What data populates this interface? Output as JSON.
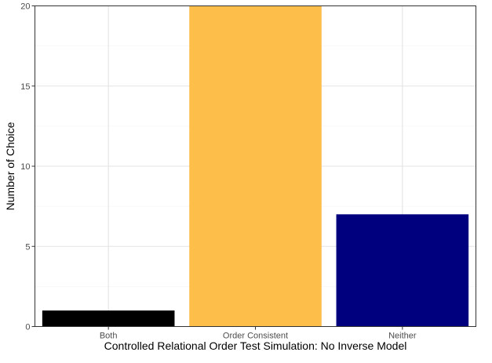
{
  "chart_data": {
    "type": "bar",
    "categories": [
      "Both",
      "Order Consistent",
      "Neither"
    ],
    "values": [
      1,
      20,
      7
    ],
    "colors": [
      "#000000",
      "#FDBE4A",
      "#00007F"
    ],
    "xlabel": "Controlled Relational Order Test Simulation: No Inverse Model",
    "ylabel": "Number of Choice",
    "ylim": [
      0,
      20
    ],
    "yticks": [
      0,
      5,
      10,
      15,
      20
    ],
    "grid": true,
    "legend": "none"
  }
}
